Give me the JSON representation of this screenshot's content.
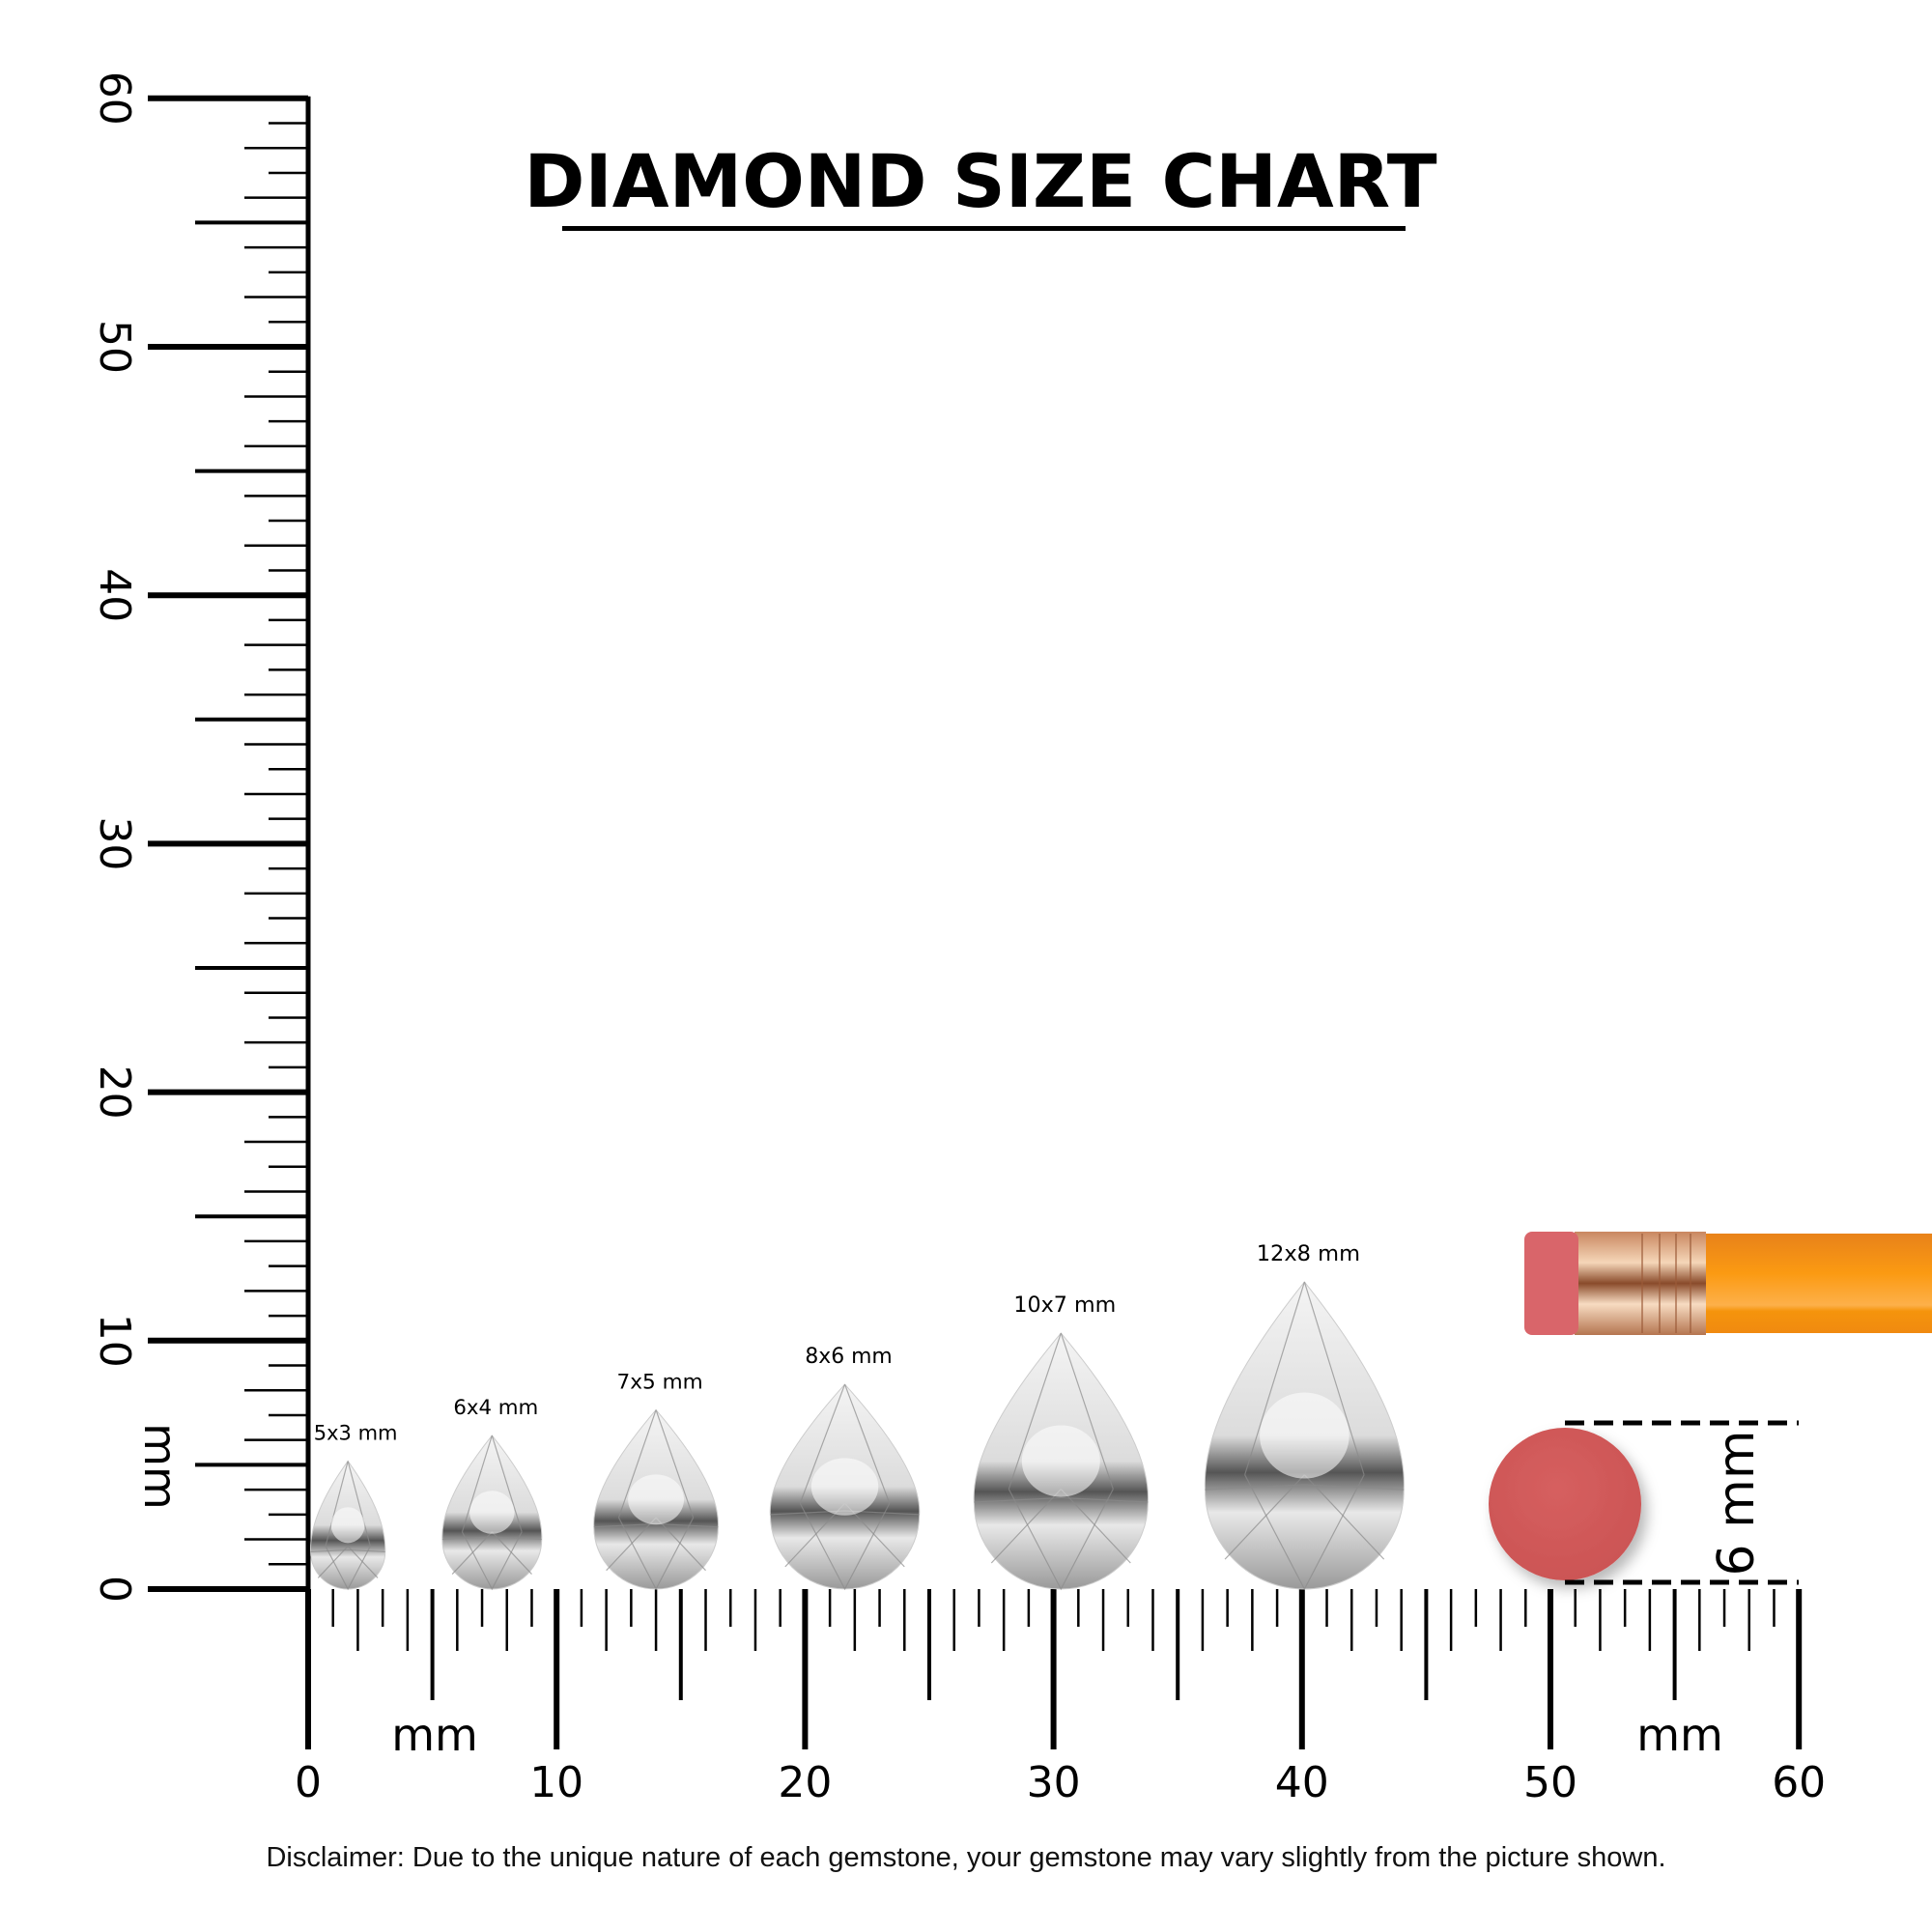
{
  "title": "DIAMOND SIZE CHART",
  "disclaimer": "Disclaimer: Due to the unique nature of each gemstone, your gemstone may vary slightly from the picture shown.",
  "vertical_ruler": {
    "unit_label": "mm",
    "range_mm": [
      0,
      60
    ],
    "tick_labels": [
      "0",
      "10",
      "20",
      "30",
      "40",
      "50",
      "60"
    ]
  },
  "horizontal_ruler": {
    "unit_labels": [
      "mm",
      "mm"
    ],
    "range_mm": [
      0,
      60
    ],
    "tick_labels": [
      "0",
      "10",
      "20",
      "30",
      "40",
      "50",
      "60"
    ]
  },
  "diamonds": [
    {
      "label": "5x3 mm",
      "length_mm": 5,
      "width_mm": 3,
      "position_mm": 1.6
    },
    {
      "label": "6x4 mm",
      "length_mm": 6,
      "width_mm": 4,
      "position_mm": 7.4
    },
    {
      "label": "7x5 mm",
      "length_mm": 7,
      "width_mm": 5,
      "position_mm": 14.0
    },
    {
      "label": "8x6 mm",
      "length_mm": 8,
      "width_mm": 6,
      "position_mm": 21.6
    },
    {
      "label": "10x7 mm",
      "length_mm": 10,
      "width_mm": 7,
      "position_mm": 30.3
    },
    {
      "label": "12x8 mm",
      "length_mm": 12,
      "width_mm": 8,
      "position_mm": 40.1
    }
  ],
  "reference": {
    "label": "6 mm",
    "eraser_diameter_mm": 6,
    "eraser_color": "#d15a5a",
    "pencil_body_color": "#f7930f",
    "ferrule_color": "#d9a07a"
  }
}
